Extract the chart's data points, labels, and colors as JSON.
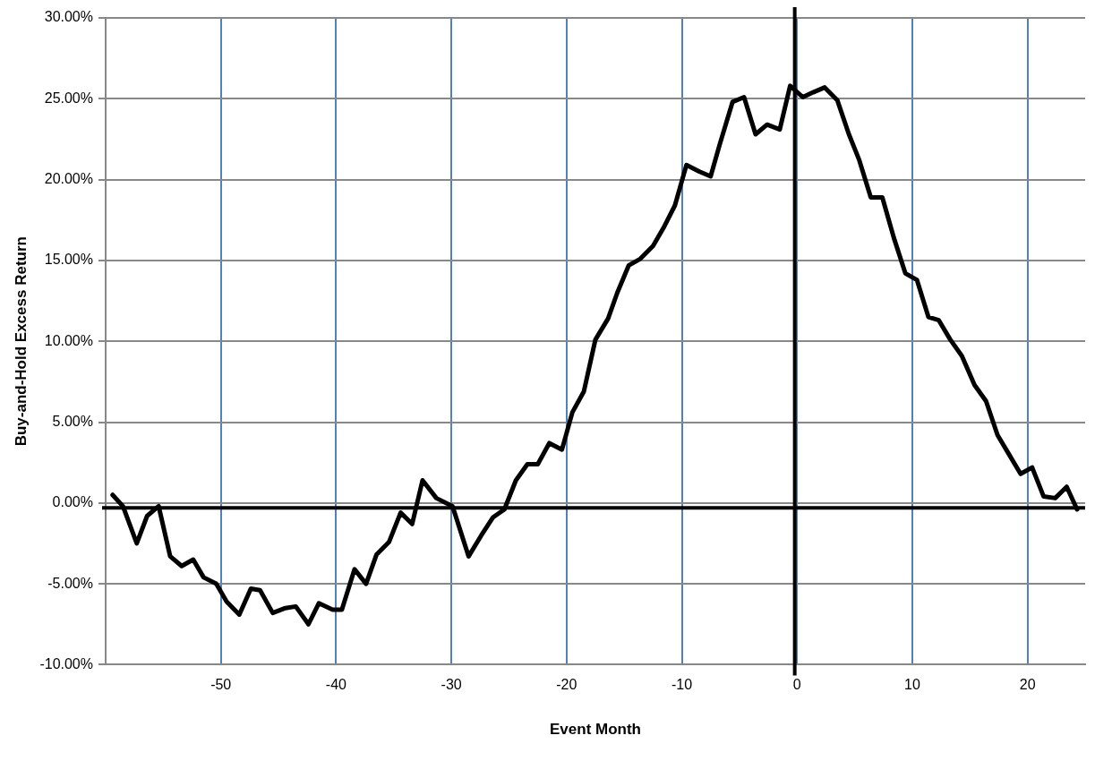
{
  "chart_data": {
    "type": "line",
    "xlabel": "Event Month",
    "ylabel": "Buy-and-Hold Excess Return",
    "x": [
      -59.4,
      -58.5,
      -57.3,
      -56.4,
      -55.4,
      -54.4,
      -53.4,
      -52.4,
      -51.5,
      -50.4,
      -49.5,
      -48.4,
      -47.4,
      -46.6,
      -45.5,
      -44.4,
      -43.5,
      -42.4,
      -41.5,
      -40.3,
      -39.5,
      -38.4,
      -37.4,
      -36.5,
      -35.4,
      -34.4,
      -33.4,
      -32.5,
      -31.3,
      -29.9,
      -28.5,
      -27.4,
      -26.4,
      -25.4,
      -24.4,
      -23.4,
      -22.5,
      -21.5,
      -20.4,
      -19.5,
      -18.5,
      -17.5,
      -16.4,
      -15.6,
      -14.6,
      -13.6,
      -12.5,
      -11.6,
      -10.6,
      -9.6,
      -8.5,
      -7.5,
      -6.7,
      -5.6,
      -4.6,
      -3.6,
      -2.6,
      -1.5,
      -0.6,
      0.5,
      1.4,
      2.4,
      3.5,
      4.5,
      5.4,
      6.4,
      7.4,
      8.4,
      9.4,
      10.4,
      11.4,
      12.3,
      13.3,
      14.3,
      15.4,
      16.4,
      17.4,
      18.4,
      19.4,
      20.4,
      21.4,
      22.4,
      23.4,
      24.3
    ],
    "series": [
      {
        "color": "#000000",
        "values": [
          0.5,
          -0.2,
          -2.5,
          -0.8,
          -0.2,
          -3.3,
          -3.9,
          -3.5,
          -4.6,
          -5.0,
          -6.1,
          -6.9,
          -5.3,
          -5.4,
          -6.8,
          -6.5,
          -6.4,
          -7.5,
          -6.2,
          -6.6,
          -6.6,
          -4.1,
          -5.0,
          -3.2,
          -2.4,
          -0.6,
          -1.3,
          1.4,
          0.3,
          -0.2,
          -3.3,
          -2.0,
          -0.9,
          -0.4,
          1.4,
          2.4,
          2.4,
          3.7,
          3.3,
          5.6,
          6.9,
          10.1,
          11.4,
          13.0,
          14.7,
          15.1,
          15.9,
          17.0,
          18.4,
          20.9,
          20.5,
          20.2,
          22.2,
          24.8,
          25.1,
          22.8,
          23.4,
          23.1,
          25.8,
          25.1,
          25.4,
          25.7,
          24.9,
          22.8,
          21.2,
          18.9,
          18.9,
          16.4,
          14.2,
          13.8,
          11.5,
          11.3,
          10.1,
          9.1,
          7.3,
          6.3,
          4.2,
          3.0,
          1.8,
          2.2,
          0.4,
          0.3,
          1.0,
          -0.4
        ]
      }
    ],
    "xlim": [
      -60,
      25
    ],
    "xticks": [
      -50,
      -40,
      -30,
      -20,
      -10,
      0,
      10,
      20
    ],
    "ylim": [
      -10,
      30
    ],
    "yticks": [
      {
        "value": -10,
        "label": "-10.00%"
      },
      {
        "value": -5,
        "label": "-5.00%"
      },
      {
        "value": 0,
        "label": "0.00%"
      },
      {
        "value": 5,
        "label": "5.00%"
      },
      {
        "value": 10,
        "label": "10.00%"
      },
      {
        "value": 15,
        "label": "15.00%"
      },
      {
        "value": 20,
        "label": "20.00%"
      },
      {
        "value": 25,
        "label": "25.00%"
      },
      {
        "value": 30,
        "label": "30.00%"
      }
    ],
    "ref_lines": [
      {
        "axis": "x",
        "value": -0.2,
        "color": "#000000"
      },
      {
        "axis": "y",
        "value": -0.3,
        "color": "#000000"
      }
    ],
    "grid": true,
    "legend": false,
    "marker": "none",
    "line_style": "solid"
  }
}
